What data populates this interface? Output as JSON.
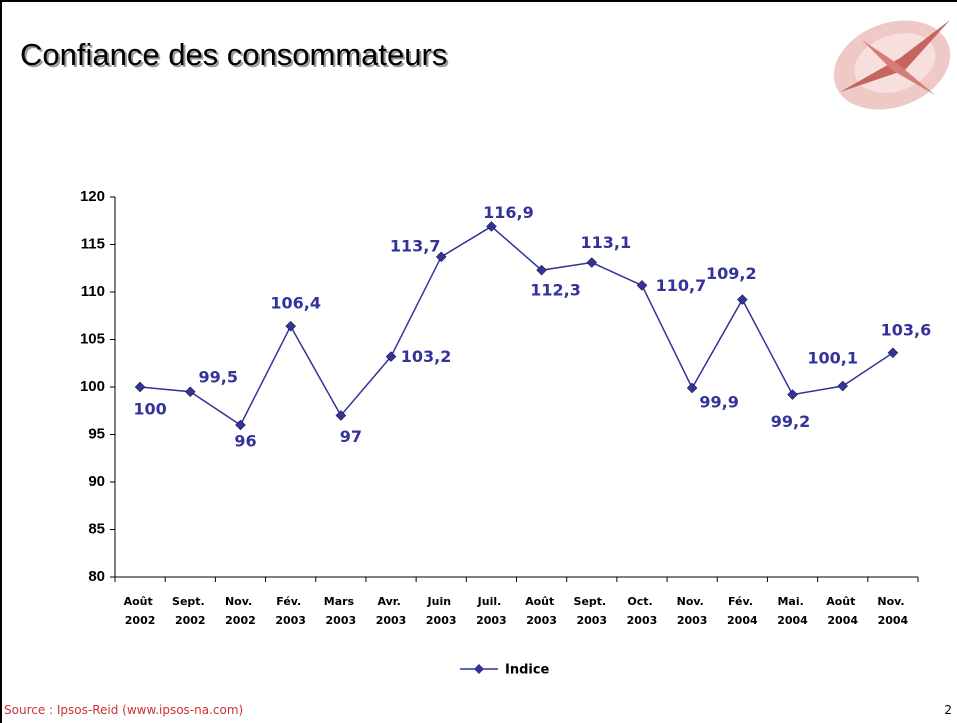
{
  "chart_data": {
    "type": "line",
    "title": "Confiance des consommateurs",
    "categories": [
      "Août 2002",
      "Sept. 2002",
      "Nov. 2002",
      "Fév. 2003",
      "Mars 2003",
      "Avr. 2003",
      "Juin 2003",
      "Juil. 2003",
      "Août 2003",
      "Sept. 2003",
      "Oct. 2003",
      "Nov. 2003",
      "Fév. 2004",
      "Mai. 2004",
      "Août 2004",
      "Nov. 2004"
    ],
    "series": [
      {
        "name": "Indice",
        "color": "#333399",
        "values": [
          100,
          99.5,
          96,
          106.4,
          97,
          103.2,
          113.7,
          116.9,
          112.3,
          113.1,
          110.7,
          99.9,
          109.2,
          99.2,
          100.1,
          103.6
        ],
        "value_labels": [
          "100",
          "99,5",
          "96",
          "106,4",
          "97",
          "103,2",
          "113,7",
          "116,9",
          "112,3",
          "113,1",
          "110,7",
          "99,9",
          "109,2",
          "99,2",
          "100,1",
          "103,6"
        ]
      }
    ],
    "ylim": [
      80,
      120
    ],
    "yticks": [
      80,
      85,
      90,
      95,
      100,
      105,
      110,
      115,
      120
    ],
    "legend": "bottom",
    "source": "Source : Ipsos-Reid (www.ipsos-na.com)",
    "page_number": "2"
  }
}
